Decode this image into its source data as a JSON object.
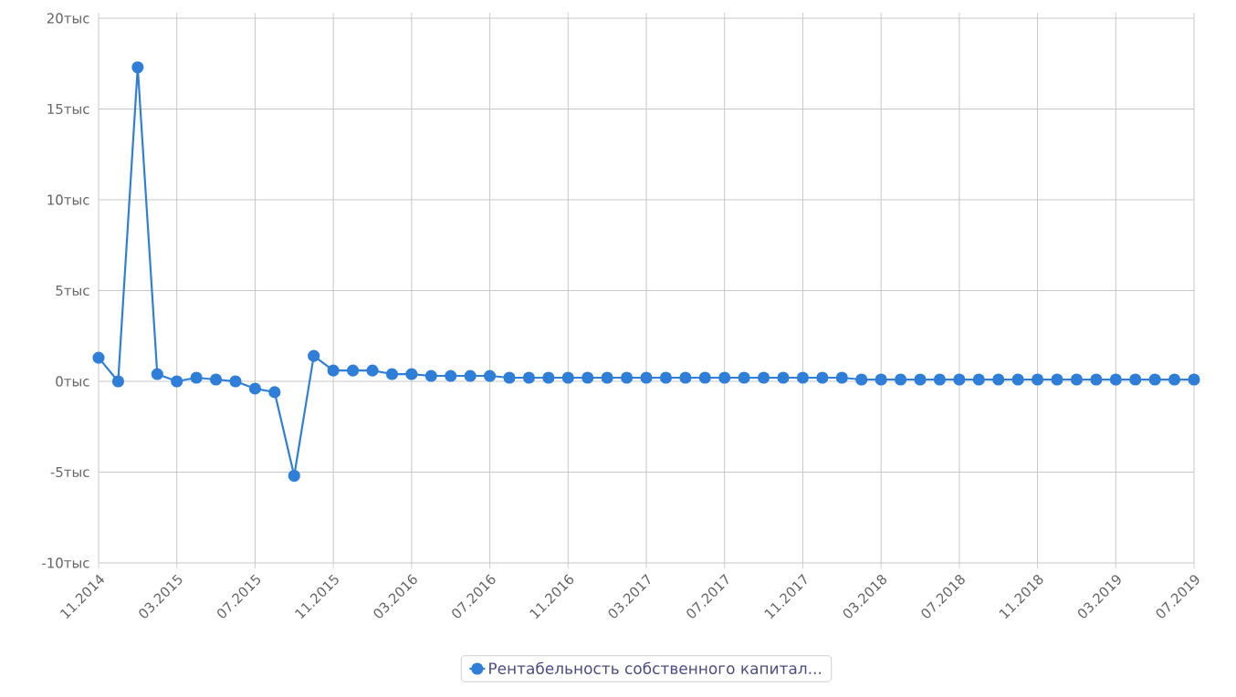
{
  "chart_data": {
    "type": "line",
    "x": [
      "2014-11",
      "2014-12",
      "2015-01",
      "2015-02",
      "2015-03",
      "2015-04",
      "2015-05",
      "2015-06",
      "2015-07",
      "2015-08",
      "2015-09",
      "2015-10",
      "2015-11",
      "2015-12",
      "2016-01",
      "2016-02",
      "2016-03",
      "2016-04",
      "2016-05",
      "2016-06",
      "2016-07",
      "2016-08",
      "2016-09",
      "2016-10",
      "2016-11",
      "2016-12",
      "2017-01",
      "2017-02",
      "2017-03",
      "2017-04",
      "2017-05",
      "2017-06",
      "2017-07",
      "2017-08",
      "2017-09",
      "2017-10",
      "2017-11",
      "2017-12",
      "2018-01",
      "2018-02",
      "2018-03",
      "2018-04",
      "2018-05",
      "2018-06",
      "2018-07",
      "2018-08",
      "2018-09",
      "2018-10",
      "2018-11",
      "2018-12",
      "2019-01",
      "2019-02",
      "2019-03",
      "2019-04",
      "2019-05",
      "2019-06",
      "2019-07"
    ],
    "series": [
      {
        "name": "Рентабельность собственного капитал...",
        "color": "#2f7ed8",
        "values": [
          1.3,
          0.0,
          17.3,
          0.4,
          0.0,
          0.2,
          0.1,
          0.0,
          -0.4,
          -0.6,
          -5.2,
          1.4,
          0.6,
          0.6,
          0.6,
          0.4,
          0.4,
          0.3,
          0.3,
          0.3,
          0.3,
          0.2,
          0.2,
          0.2,
          0.2,
          0.2,
          0.2,
          0.2,
          0.2,
          0.2,
          0.2,
          0.2,
          0.2,
          0.2,
          0.2,
          0.2,
          0.2,
          0.2,
          0.2,
          0.1,
          0.1,
          0.1,
          0.1,
          0.1,
          0.1,
          0.1,
          0.1,
          0.1,
          0.1,
          0.1,
          0.1,
          0.1,
          0.1,
          0.1,
          0.1,
          0.1,
          0.1
        ]
      }
    ],
    "xlim": [
      "2014-11",
      "2019-07"
    ],
    "xticks": [
      {
        "value": "2014-11",
        "label": "11.2014"
      },
      {
        "value": "2015-03",
        "label": "03.2015"
      },
      {
        "value": "2015-07",
        "label": "07.2015"
      },
      {
        "value": "2015-11",
        "label": "11.2015"
      },
      {
        "value": "2016-03",
        "label": "03.2016"
      },
      {
        "value": "2016-07",
        "label": "07.2016"
      },
      {
        "value": "2016-11",
        "label": "11.2016"
      },
      {
        "value": "2017-03",
        "label": "03.2017"
      },
      {
        "value": "2017-07",
        "label": "07.2017"
      },
      {
        "value": "2017-11",
        "label": "11.2017"
      },
      {
        "value": "2018-03",
        "label": "03.2018"
      },
      {
        "value": "2018-07",
        "label": "07.2018"
      },
      {
        "value": "2018-11",
        "label": "11.2018"
      },
      {
        "value": "2019-03",
        "label": "03.2019"
      },
      {
        "value": "2019-07",
        "label": "07.2019"
      }
    ],
    "ylim": [
      -10,
      20
    ],
    "yticks": [
      {
        "value": -10,
        "label": "-10тыс"
      },
      {
        "value": -5,
        "label": "-5тыс"
      },
      {
        "value": 0,
        "label": "0тыс"
      },
      {
        "value": 5,
        "label": "5тыс"
      },
      {
        "value": 10,
        "label": "10тыс"
      },
      {
        "value": 15,
        "label": "15тыс"
      },
      {
        "value": 20,
        "label": "20тыс"
      }
    ],
    "grid": true,
    "legend": "bottom",
    "marker": "circle",
    "line_style": "solid"
  }
}
